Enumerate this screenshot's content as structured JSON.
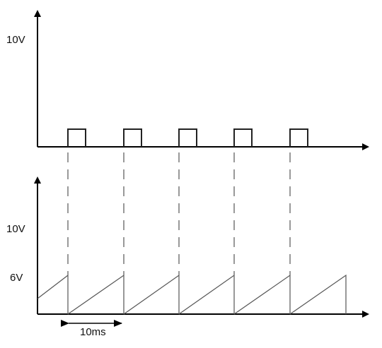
{
  "top_plot": {
    "y_label": "10V",
    "pulses": 5
  },
  "bottom_plot": {
    "y_label_high": "10V",
    "y_label_mid": "6V",
    "period_label": "10ms",
    "ramps": 6
  },
  "colors": {
    "axis": "#000000",
    "signal": "#222222",
    "ramp": "#555555",
    "dash": "#333333"
  }
}
